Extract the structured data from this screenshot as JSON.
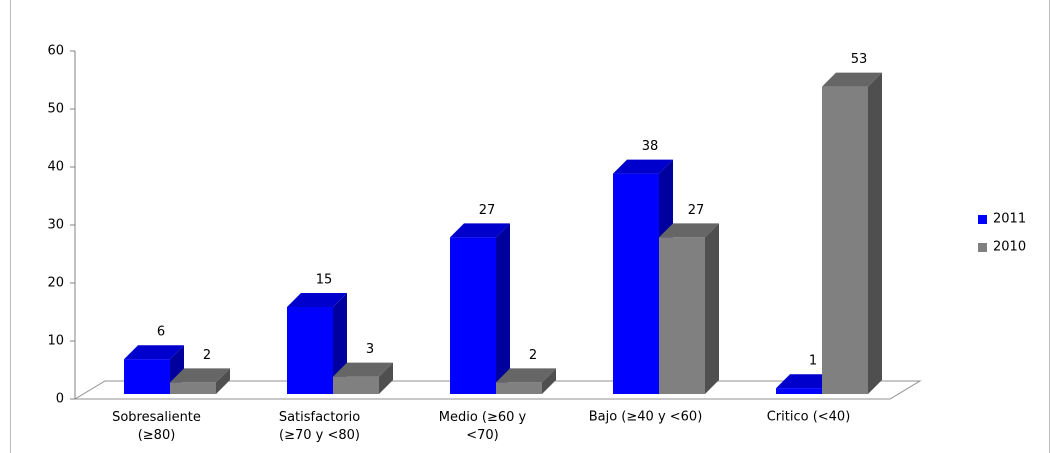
{
  "chart_data": {
    "type": "bar3d",
    "categories": [
      "Sobresaliente\n(≥80)",
      "Satisfactorio\n(≥70 y <80)",
      "Medio (≥60 y\n<70)",
      "Bajo (≥40 y <60)",
      "Critico (<40)"
    ],
    "series": [
      {
        "name": "2011",
        "color": "#0000ff",
        "values": [
          6,
          15,
          27,
          38,
          1
        ]
      },
      {
        "name": "2010",
        "color": "#808080",
        "values": [
          2,
          3,
          2,
          27,
          53
        ]
      }
    ],
    "ylim": [
      0,
      60
    ],
    "yticks": [
      0,
      10,
      20,
      30,
      40,
      50,
      60
    ],
    "grid": false,
    "legend": "right"
  }
}
